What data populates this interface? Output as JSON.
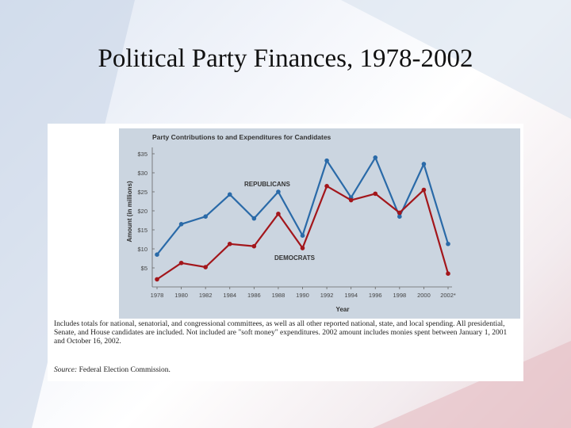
{
  "slide": {
    "title": "Political Party Finances, 1978-2002"
  },
  "caption": {
    "note": "Includes totals for national, senatorial, and congressional committees, as well as all other reported national, state, and local spending. All presidential, Senate, and House candidates are included. Not included are \"soft money\" expenditures. 2002 amount includes monies spent between January 1, 2001 and October 16, 2002.",
    "source_label": "Source:",
    "source_text": "Federal Election Commission."
  },
  "colors": {
    "republicans": "#2a6aa8",
    "democrats": "#a3161b",
    "panel": "#cbd5e0"
  },
  "chart_data": {
    "type": "line",
    "title": "Party Contributions to and Expenditures for Candidates",
    "xlabel": "Year",
    "ylabel": "Amount (in millions)",
    "categories": [
      "1978",
      "1980",
      "1982",
      "1984",
      "1986",
      "1988",
      "1990",
      "1992",
      "1994",
      "1996",
      "1998",
      "2000",
      "2002*"
    ],
    "y_ticks": [
      "$5",
      "$10",
      "$15",
      "$20",
      "$25",
      "$30",
      "$35"
    ],
    "ylim": [
      0,
      35
    ],
    "grid": false,
    "series": [
      {
        "name": "REPUBLICANS",
        "color": "#2a6aa8",
        "values": [
          8.5,
          16.5,
          18.5,
          24.3,
          18,
          25,
          13.5,
          33.2,
          23.5,
          34,
          18.5,
          32.3,
          11.3
        ]
      },
      {
        "name": "DEMOCRATS",
        "color": "#a3161b",
        "values": [
          2,
          6.3,
          5.2,
          11.3,
          10.7,
          19.2,
          10.2,
          26.5,
          22.8,
          24.5,
          19.5,
          25.5,
          3.5
        ]
      }
    ]
  }
}
